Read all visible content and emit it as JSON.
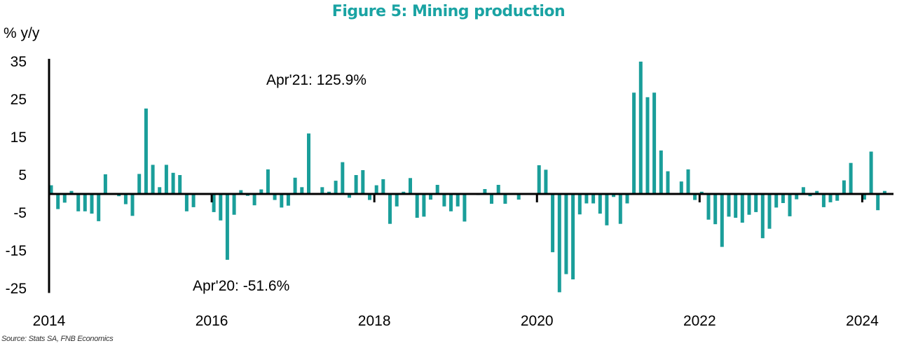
{
  "chart_data": {
    "type": "bar",
    "title": "Figure 5: Mining production",
    "ylabel": "% y/y",
    "xlabel": "",
    "source": "Source: Stats SA, FNB Economics",
    "start": "2014-01",
    "frequency": "monthly",
    "ylim": [
      -26,
      35
    ],
    "yticks": [
      35,
      25,
      15,
      5,
      -5,
      -15,
      -25
    ],
    "xticks": [
      "2014",
      "2016",
      "2018",
      "2020",
      "2022",
      "2024"
    ],
    "bar_color": "#1a9e9a",
    "grid": false,
    "annotations": [
      {
        "text": "Apr'21: 125.9%",
        "date": "2021-04",
        "value": 125.9
      },
      {
        "text": "Apr'20: -51.6%",
        "date": "2020-04",
        "value": -51.6
      }
    ],
    "values": [
      2.3,
      -4.0,
      -2.3,
      0.8,
      -4.6,
      -4.6,
      -5.2,
      -7.2,
      5.2,
      0.2,
      -0.6,
      -2.7,
      -5.8,
      5.3,
      22.6,
      7.7,
      1.8,
      7.7,
      5.6,
      5.0,
      -4.6,
      -3.5,
      0.2,
      0.2,
      -4.8,
      -7.0,
      -17.4,
      -5.5,
      1.0,
      -0.5,
      -3.0,
      1.2,
      6.5,
      -1.6,
      -3.6,
      -3.1,
      4.3,
      1.8,
      16.0,
      0.0,
      1.8,
      0.6,
      3.5,
      8.4,
      -1.0,
      5.0,
      6.3,
      -1.6,
      2.3,
      3.9,
      -7.9,
      -3.3,
      0.6,
      4.2,
      -6.3,
      -6.0,
      -1.5,
      2.4,
      -3.3,
      -4.6,
      -3.3,
      -7.3,
      0.2,
      -0.3,
      1.3,
      -2.6,
      2.4,
      -2.6,
      0.2,
      -1.5,
      0.2,
      0.2,
      7.6,
      6.4,
      -15.4,
      -51.6,
      -21.2,
      -22.6,
      -5.4,
      -2.5,
      -2.5,
      -5.2,
      -8.3,
      -0.8,
      -7.9,
      -2.5,
      26.8,
      125.9,
      25.6,
      26.8,
      11.5,
      6.0,
      0.2,
      3.3,
      6.5,
      -1.6,
      0.6,
      -6.8,
      -8.0,
      -14.0,
      -6.0,
      -6.3,
      -7.6,
      -5.5,
      -4.8,
      -11.7,
      -9.2,
      -3.6,
      -2.4,
      -5.9,
      -1.4,
      1.8,
      -0.6,
      0.8,
      -3.5,
      -2.2,
      -1.8,
      3.6,
      8.2,
      0.2,
      -1.5,
      11.2,
      -4.3,
      0.8
    ]
  }
}
